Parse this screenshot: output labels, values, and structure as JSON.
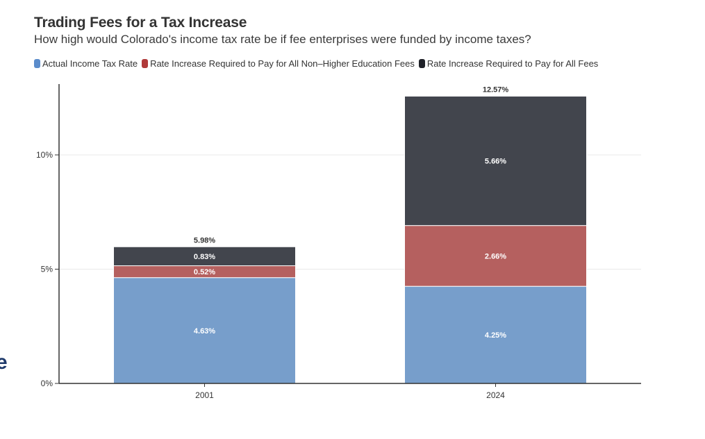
{
  "header": {
    "title": "Trading Fees for a Tax Increase",
    "subtitle": "How high would Colorado's income tax rate be if fee enterprises were funded by income taxes?"
  },
  "edge_text": "e",
  "chart_data": {
    "type": "bar",
    "stacked": true,
    "title": "Trading Fees for a Tax Increase",
    "subtitle": "How high would Colorado's income tax rate be if fee enterprises were funded by income taxes?",
    "xlabel": "",
    "ylabel": "",
    "categories": [
      "2001",
      "2024"
    ],
    "series": [
      {
        "name": "Actual Income Tax Rate",
        "color": "#779ECB",
        "legend_color": "#5B8CCB",
        "values": [
          4.63,
          4.25
        ],
        "labels": [
          "4.63%",
          "4.25%"
        ]
      },
      {
        "name": "Rate Increase Required to Pay for All Non–Higher Education Fees",
        "color": "#B5605F",
        "legend_color": "#B03A3A",
        "values": [
          0.52,
          2.66
        ],
        "labels": [
          "0.52%",
          "2.66%"
        ]
      },
      {
        "name": "Rate Increase Required to Pay for All Fees",
        "color": "#42454D",
        "legend_color": "#1F2128",
        "values": [
          0.83,
          5.66
        ],
        "labels": [
          "0.83%",
          "5.66%"
        ]
      }
    ],
    "totals": [
      5.98,
      12.57
    ],
    "total_labels": [
      "5.98%",
      "12.57%"
    ],
    "yticks": [
      0,
      5,
      10
    ],
    "ytick_labels": [
      "0%",
      "5%",
      "10%"
    ],
    "ylim": [
      0,
      13.1
    ],
    "grid": true,
    "legend_position": "top-left"
  }
}
